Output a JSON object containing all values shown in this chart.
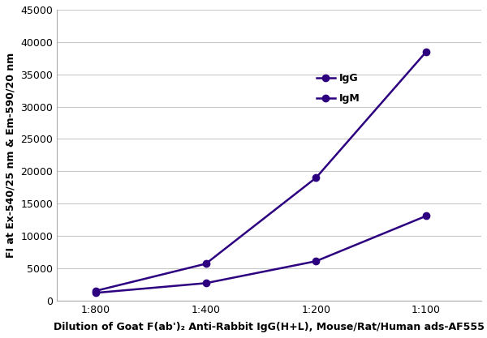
{
  "x_labels": [
    "1:800",
    "1:400",
    "1:200",
    "1:100"
  ],
  "x_values": [
    0,
    1,
    2,
    3
  ],
  "IgG_values": [
    1500,
    5700,
    19000,
    38500
  ],
  "IgM_values": [
    1200,
    2700,
    6100,
    13100
  ],
  "line_color": "#2d0080",
  "marker_style": "o",
  "marker_size": 6,
  "ylabel": "FI at Ex-540/25 nm & Em-590/20 nm",
  "xlabel": "Dilution of Goat F(ab')₂ Anti-Rabbit IgG(H+L), Mouse/Rat/Human ads-AF555",
  "ylim": [
    0,
    45000
  ],
  "yticks": [
    0,
    5000,
    10000,
    15000,
    20000,
    25000,
    30000,
    35000,
    40000,
    45000
  ],
  "legend_labels": [
    "IgG",
    "IgM"
  ],
  "background_color": "#ffffff",
  "grid_color": "#c8c8c8",
  "ylabel_fontsize": 9,
  "xlabel_fontsize": 9,
  "tick_fontsize": 9,
  "legend_fontsize": 9
}
